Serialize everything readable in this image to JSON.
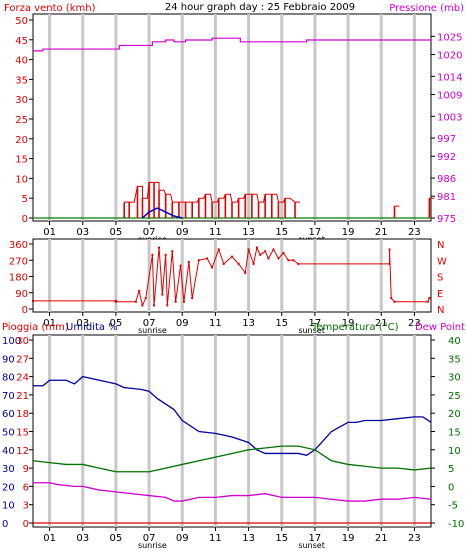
{
  "colors": {
    "border": "#000000",
    "grid": "#c8c8c8",
    "wind": "#e00000",
    "gust_fill": "#d00000",
    "avg_wind": "#0000c0",
    "pressure": "#d000d0",
    "direction": "#e00000",
    "humidity": "#0000a0",
    "temperature": "#007000",
    "dewpoint": "#d000d0",
    "rain": "#e00000",
    "zero_line": "#008000"
  },
  "chart_data": [
    {
      "type": "line",
      "id": "wind_pressure",
      "title": "24 hour graph day : 25 Febbraio 2009",
      "ylabel_left": "Forza vento (kmh)",
      "ylabel_right": "Pressione (mb)",
      "ylim_left": [
        0,
        50
      ],
      "yticks_left": [
        "50",
        "45",
        "40",
        "35",
        "30",
        "25",
        "20",
        "15",
        "10",
        "5",
        "0"
      ],
      "ylim_right": [
        975,
        1029.5
      ],
      "yticks_right": [
        "1025",
        "1020",
        "1014",
        "1009",
        "1003",
        "997",
        "992",
        "986",
        "981",
        "975"
      ],
      "xticks": [
        "01",
        "03",
        "05",
        "07",
        "09",
        "11",
        "13",
        "15",
        "17",
        "19",
        "21",
        "23"
      ],
      "x_range": [
        0,
        24
      ],
      "annotations": [
        {
          "text": "sunrise",
          "x": 7.2
        },
        {
          "text": "sunset",
          "x": 16.8
        }
      ],
      "series": [
        {
          "role": "pressione",
          "values": [
            [
              0,
              1021
            ],
            [
              0.6,
              1021
            ],
            [
              0.6,
              1021.5
            ],
            [
              5.2,
              1021.5
            ],
            [
              5.2,
              1022.5
            ],
            [
              7.2,
              1022.5
            ],
            [
              7.2,
              1023.5
            ],
            [
              8,
              1023.5
            ],
            [
              8,
              1024
            ],
            [
              8.5,
              1024
            ],
            [
              8.5,
              1023.5
            ],
            [
              9.2,
              1023.5
            ],
            [
              9.2,
              1024
            ],
            [
              10.8,
              1024
            ],
            [
              10.8,
              1024.5
            ],
            [
              12.5,
              1024.5
            ],
            [
              12.5,
              1023.5
            ],
            [
              16.5,
              1023.5
            ],
            [
              16.5,
              1024
            ],
            [
              24,
              1024
            ]
          ]
        },
        {
          "role": "vento_bars",
          "values": [
            [
              5.5,
              4
            ],
            [
              5.8,
              4
            ],
            [
              6.3,
              8
            ],
            [
              6.6,
              5
            ],
            [
              7.0,
              9
            ],
            [
              7.3,
              9
            ],
            [
              7.6,
              7
            ],
            [
              8.0,
              6
            ],
            [
              8.4,
              4
            ],
            [
              8.8,
              4
            ],
            [
              9.2,
              4
            ],
            [
              9.6,
              4
            ],
            [
              10.0,
              5
            ],
            [
              10.4,
              6
            ],
            [
              10.8,
              4
            ],
            [
              11.2,
              5
            ],
            [
              11.6,
              6
            ],
            [
              12.0,
              4
            ],
            [
              12.4,
              5
            ],
            [
              12.8,
              6
            ],
            [
              13.2,
              6
            ],
            [
              13.6,
              4
            ],
            [
              14.0,
              6
            ],
            [
              14.4,
              6
            ],
            [
              14.8,
              4
            ],
            [
              15.2,
              5
            ],
            [
              15.8,
              4
            ],
            [
              21.8,
              3
            ],
            [
              23.9,
              5
            ]
          ]
        },
        {
          "role": "vento_medio",
          "values": [
            [
              6.6,
              0
            ],
            [
              7.0,
              1.5
            ],
            [
              7.5,
              2.5
            ],
            [
              8.0,
              1.5
            ],
            [
              8.5,
              0.5
            ],
            [
              9.0,
              0
            ]
          ]
        }
      ]
    },
    {
      "type": "scatter",
      "id": "direction",
      "ylim": [
        0,
        360
      ],
      "yticks": [
        "360",
        "270",
        "180",
        "90",
        "0"
      ],
      "right_labels": [
        "N",
        "W",
        "S",
        "E",
        "N"
      ],
      "xticks": [
        "01",
        "03",
        "05",
        "07",
        "09",
        "11",
        "13",
        "15",
        "17",
        "19",
        "21",
        "23"
      ],
      "annotations": [
        {
          "text": "sunrise",
          "x": 7.2
        },
        {
          "text": "sunset",
          "x": 16.8
        }
      ],
      "series": [
        {
          "role": "direzione",
          "values": [
            [
              0,
              45
            ],
            [
              5.0,
              45
            ],
            [
              5.0,
              40
            ],
            [
              6.2,
              40
            ],
            [
              6.4,
              100
            ],
            [
              6.6,
              20
            ],
            [
              6.8,
              60
            ],
            [
              7.2,
              300
            ],
            [
              7.3,
              20
            ],
            [
              7.6,
              340
            ],
            [
              7.8,
              80
            ],
            [
              8.0,
              300
            ],
            [
              8.1,
              20
            ],
            [
              8.4,
              320
            ],
            [
              8.6,
              40
            ],
            [
              8.9,
              240
            ],
            [
              9.1,
              40
            ],
            [
              9.4,
              260
            ],
            [
              9.6,
              60
            ],
            [
              10.0,
              270
            ],
            [
              10.5,
              280
            ],
            [
              10.8,
              230
            ],
            [
              11.2,
              330
            ],
            [
              11.5,
              250
            ],
            [
              12.0,
              290
            ],
            [
              12.4,
              250
            ],
            [
              12.8,
              200
            ],
            [
              13.0,
              330
            ],
            [
              13.3,
              250
            ],
            [
              13.5,
              340
            ],
            [
              13.7,
              300
            ],
            [
              14.0,
              320
            ],
            [
              14.2,
              280
            ],
            [
              14.5,
              330
            ],
            [
              14.8,
              280
            ],
            [
              15.1,
              310
            ],
            [
              15.4,
              270
            ],
            [
              15.7,
              270
            ],
            [
              16.0,
              250
            ],
            [
              21.5,
              250
            ],
            [
              21.5,
              330
            ],
            [
              21.6,
              60
            ],
            [
              21.8,
              40
            ],
            [
              23.8,
              40
            ],
            [
              23.9,
              60
            ]
          ]
        }
      ]
    },
    {
      "type": "line",
      "id": "weather",
      "ylabel_left_1": "Pioggia (mm)",
      "ylabel_left_2": "Umidita %",
      "ylabel_right_1": "Temperatura (°C)",
      "ylabel_right_2": "Dew Point",
      "yticks_left_outer": [
        "100",
        "90",
        "80",
        "70",
        "60",
        "50",
        "40",
        "30",
        "20",
        "10",
        "0"
      ],
      "yticks_left_inner": [
        "30",
        "27",
        "24",
        "21",
        "18",
        "15",
        "12",
        "9",
        "6",
        "3",
        "0"
      ],
      "yticks_right": [
        "40",
        "35",
        "30",
        "25",
        "20",
        "15",
        "10",
        "5",
        "0",
        "-5",
        "-10"
      ],
      "ylim_humidity": [
        0,
        100
      ],
      "ylim_temperature": [
        -10,
        40
      ],
      "xticks": [
        "01",
        "03",
        "05",
        "07",
        "09",
        "11",
        "13",
        "15",
        "17",
        "19",
        "21",
        "23"
      ],
      "annotations": [
        {
          "text": "sunrise",
          "x": 7.2
        },
        {
          "text": "sunset",
          "x": 16.8
        }
      ],
      "series": [
        {
          "role": "umidita",
          "values": [
            [
              0,
              75
            ],
            [
              0.6,
              75
            ],
            [
              1.0,
              78
            ],
            [
              2.0,
              78
            ],
            [
              2.5,
              76
            ],
            [
              3.0,
              80
            ],
            [
              4.0,
              78
            ],
            [
              5.0,
              76
            ],
            [
              5.5,
              74
            ],
            [
              6.5,
              73
            ],
            [
              7.0,
              72
            ],
            [
              7.5,
              68
            ],
            [
              8.0,
              65
            ],
            [
              8.5,
              62
            ],
            [
              9.0,
              56
            ],
            [
              9.5,
              53
            ],
            [
              10.0,
              50
            ],
            [
              11.0,
              49
            ],
            [
              12.0,
              47
            ],
            [
              13.0,
              44
            ],
            [
              13.5,
              40
            ],
            [
              14.0,
              38
            ],
            [
              15.0,
              38
            ],
            [
              16.0,
              38
            ],
            [
              16.5,
              37
            ],
            [
              17.0,
              40
            ],
            [
              17.5,
              45
            ],
            [
              18.0,
              50
            ],
            [
              19.0,
              55
            ],
            [
              19.5,
              55
            ],
            [
              20.0,
              56
            ],
            [
              21.0,
              56
            ],
            [
              22.0,
              57
            ],
            [
              23.0,
              58
            ],
            [
              23.5,
              58
            ],
            [
              24.0,
              55
            ]
          ]
        },
        {
          "role": "temperatura",
          "values": [
            [
              0,
              7
            ],
            [
              1.0,
              6.5
            ],
            [
              2.0,
              6
            ],
            [
              3.0,
              6
            ],
            [
              4.0,
              5
            ],
            [
              5.0,
              4
            ],
            [
              6.0,
              4
            ],
            [
              7.0,
              4
            ],
            [
              8.0,
              5
            ],
            [
              9.0,
              6
            ],
            [
              10.0,
              7
            ],
            [
              11.0,
              8
            ],
            [
              12.0,
              9
            ],
            [
              13.0,
              10
            ],
            [
              14.0,
              10.5
            ],
            [
              15.0,
              11
            ],
            [
              16.0,
              11
            ],
            [
              17.0,
              10
            ],
            [
              17.5,
              8.5
            ],
            [
              18.0,
              7
            ],
            [
              19.0,
              6
            ],
            [
              20.0,
              5.5
            ],
            [
              21.0,
              5
            ],
            [
              22.0,
              5
            ],
            [
              23.0,
              4.5
            ],
            [
              24.0,
              5
            ]
          ]
        },
        {
          "role": "dew_point",
          "values": [
            [
              0,
              1
            ],
            [
              1.0,
              1
            ],
            [
              1.5,
              0.5
            ],
            [
              2.5,
              0
            ],
            [
              3.0,
              0
            ],
            [
              4.0,
              -1
            ],
            [
              5.0,
              -1.5
            ],
            [
              6.0,
              -2
            ],
            [
              7.0,
              -2.5
            ],
            [
              8.0,
              -3
            ],
            [
              8.5,
              -4
            ],
            [
              9.0,
              -4
            ],
            [
              10.0,
              -3
            ],
            [
              11.0,
              -3
            ],
            [
              12.0,
              -2.5
            ],
            [
              13.0,
              -2.5
            ],
            [
              14.0,
              -2
            ],
            [
              15.0,
              -3
            ],
            [
              16.0,
              -3
            ],
            [
              17.0,
              -3
            ],
            [
              18.0,
              -3.5
            ],
            [
              19.0,
              -4
            ],
            [
              20.0,
              -4
            ],
            [
              21.0,
              -3.5
            ],
            [
              22.0,
              -3.5
            ],
            [
              23.0,
              -3
            ],
            [
              24.0,
              -3.5
            ]
          ]
        },
        {
          "role": "pioggia",
          "values": [
            [
              0,
              0
            ],
            [
              24,
              0
            ]
          ]
        }
      ]
    }
  ]
}
